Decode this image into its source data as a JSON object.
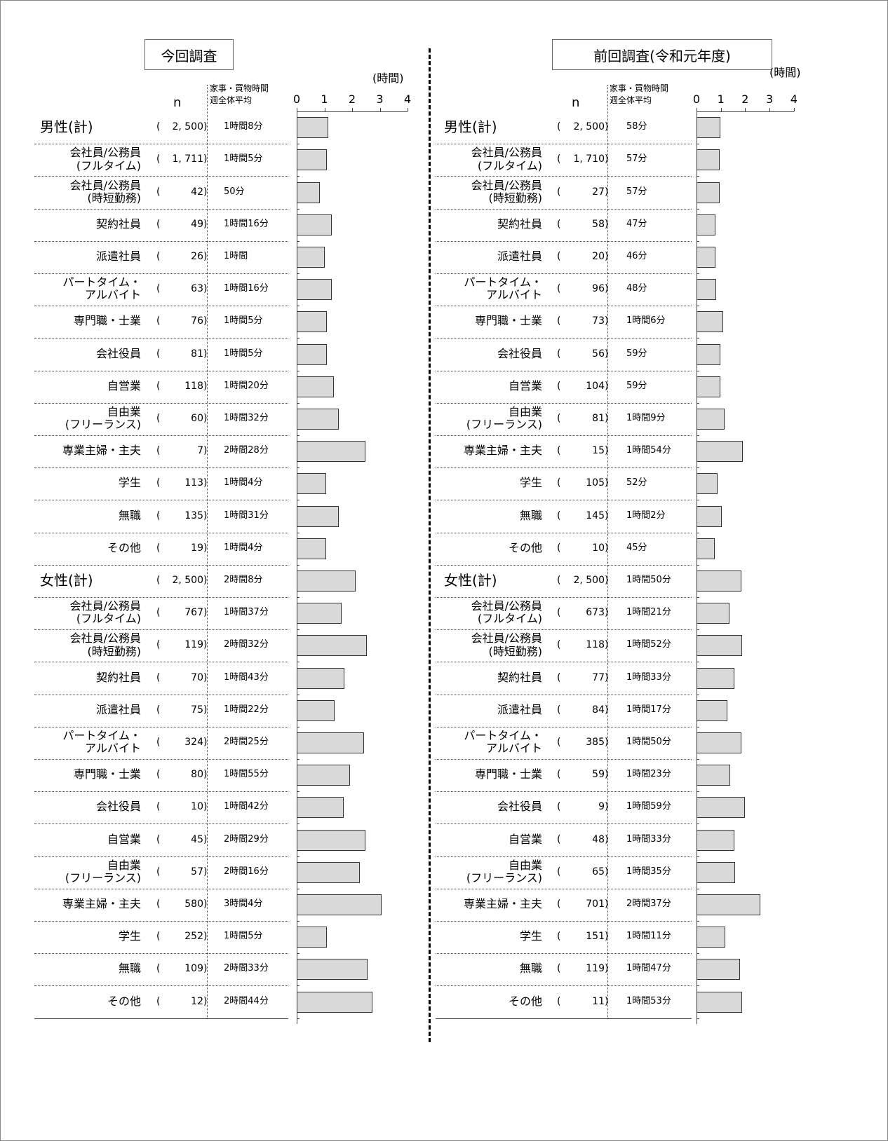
{
  "chart_data": [
    {
      "type": "bar",
      "title": "今回調査",
      "n_header": "n",
      "n_brackets": [
        "(",
        ")"
      ],
      "value_header": [
        "家事・買物時間",
        "週全体平均"
      ],
      "unit": "(時間)",
      "xlim": [
        0,
        4
      ],
      "xticks": [
        0,
        1,
        2,
        3,
        4
      ],
      "color": "#d9d9d9",
      "groups": [
        {
          "label": "男性(計)",
          "n": {
            "value": 2500,
            "label": "2, 500"
          },
          "value": 1.13,
          "value_label": "1時間8分",
          "rows": [
            {
              "label": "会社員/公務員\n(フルタイム)",
              "n": {
                "value": 1711,
                "label": "1, 711"
              },
              "value": 1.08,
              "value_label": "1時間5分"
            },
            {
              "label": "会社員/公務員\n(時短勤務)",
              "n": 42,
              "value": 0.83,
              "value_label": "50分"
            },
            {
              "label": "契約社員",
              "n": 49,
              "value": 1.27,
              "value_label": "1時間16分"
            },
            {
              "label": "派遣社員",
              "n": 26,
              "value": 1.0,
              "value_label": "1時間"
            },
            {
              "label": "パートタイム・\nアルバイト",
              "n": 63,
              "value": 1.27,
              "value_label": "1時間16分"
            },
            {
              "label": "専門職・士業",
              "n": 76,
              "value": 1.08,
              "value_label": "1時間5分"
            },
            {
              "label": "会社役員",
              "n": 81,
              "value": 1.08,
              "value_label": "1時間5分"
            },
            {
              "label": "自営業",
              "n": 118,
              "value": 1.33,
              "value_label": "1時間20分"
            },
            {
              "label": "自由業\n(フリーランス)",
              "n": 60,
              "value": 1.53,
              "value_label": "1時間32分"
            },
            {
              "label": "専業主婦・主夫",
              "n": 7,
              "value": 2.47,
              "value_label": "2時間28分"
            },
            {
              "label": "学生",
              "n": 113,
              "value": 1.07,
              "value_label": "1時間4分"
            },
            {
              "label": "無職",
              "n": 135,
              "value": 1.52,
              "value_label": "1時間31分"
            },
            {
              "label": "その他",
              "n": 19,
              "value": 1.07,
              "value_label": "1時間4分"
            }
          ]
        },
        {
          "label": "女性(計)",
          "n": {
            "value": 2500,
            "label": "2, 500"
          },
          "value": 2.13,
          "value_label": "2時間8分",
          "rows": [
            {
              "label": "会社員/公務員\n(フルタイム)",
              "n": 767,
              "value": 1.62,
              "value_label": "1時間37分"
            },
            {
              "label": "会社員/公務員\n(時短勤務)",
              "n": 119,
              "value": 2.53,
              "value_label": "2時間32分"
            },
            {
              "label": "契約社員",
              "n": 70,
              "value": 1.72,
              "value_label": "1時間43分"
            },
            {
              "label": "派遣社員",
              "n": 75,
              "value": 1.37,
              "value_label": "1時間22分"
            },
            {
              "label": "パートタイム・\nアルバイト",
              "n": 324,
              "value": 2.42,
              "value_label": "2時間25分"
            },
            {
              "label": "専門職・士業",
              "n": 80,
              "value": 1.92,
              "value_label": "1時間55分"
            },
            {
              "label": "会社役員",
              "n": 10,
              "value": 1.7,
              "value_label": "1時間42分"
            },
            {
              "label": "自営業",
              "n": 45,
              "value": 2.48,
              "value_label": "2時間29分"
            },
            {
              "label": "自由業\n(フリーランス)",
              "n": 57,
              "value": 2.27,
              "value_label": "2時間16分"
            },
            {
              "label": "専業主婦・主夫",
              "n": 580,
              "value": 3.07,
              "value_label": "3時間4分"
            },
            {
              "label": "学生",
              "n": 252,
              "value": 1.08,
              "value_label": "1時間5分"
            },
            {
              "label": "無職",
              "n": 109,
              "value": 2.55,
              "value_label": "2時間33分"
            },
            {
              "label": "その他",
              "n": 12,
              "value": 2.73,
              "value_label": "2時間44分"
            }
          ]
        }
      ]
    },
    {
      "type": "bar",
      "title": "前回調査(令和元年度)",
      "n_header": "n",
      "n_brackets": [
        "(",
        ")"
      ],
      "value_header": [
        "家事・買物時間",
        "週全体平均"
      ],
      "unit": "(時間)",
      "xlim": [
        0,
        4
      ],
      "xticks": [
        0,
        1,
        2,
        3,
        4
      ],
      "color": "#d9d9d9",
      "groups": [
        {
          "label": "男性(計)",
          "n": {
            "value": 2500,
            "label": "2, 500"
          },
          "value": 0.97,
          "value_label": "58分",
          "rows": [
            {
              "label": "会社員/公務員\n(フルタイム)",
              "n": {
                "value": 1710,
                "label": "1, 710"
              },
              "value": 0.95,
              "value_label": "57分"
            },
            {
              "label": "会社員/公務員\n(時短勤務)",
              "n": 27,
              "value": 0.95,
              "value_label": "57分"
            },
            {
              "label": "契約社員",
              "n": 58,
              "value": 0.78,
              "value_label": "47分"
            },
            {
              "label": "派遣社員",
              "n": 20,
              "value": 0.77,
              "value_label": "46分"
            },
            {
              "label": "パートタイム・\nアルバイト",
              "n": 96,
              "value": 0.8,
              "value_label": "48分"
            },
            {
              "label": "専門職・士業",
              "n": 73,
              "value": 1.1,
              "value_label": "1時間6分"
            },
            {
              "label": "会社役員",
              "n": 56,
              "value": 0.98,
              "value_label": "59分"
            },
            {
              "label": "自営業",
              "n": 104,
              "value": 0.98,
              "value_label": "59分"
            },
            {
              "label": "自由業\n(フリーランス)",
              "n": 81,
              "value": 1.15,
              "value_label": "1時間9分"
            },
            {
              "label": "専業主婦・主夫",
              "n": 15,
              "value": 1.9,
              "value_label": "1時間54分"
            },
            {
              "label": "学生",
              "n": 105,
              "value": 0.87,
              "value_label": "52分"
            },
            {
              "label": "無職",
              "n": 145,
              "value": 1.03,
              "value_label": "1時間2分"
            },
            {
              "label": "その他",
              "n": 10,
              "value": 0.75,
              "value_label": "45分"
            }
          ]
        },
        {
          "label": "女性(計)",
          "n": {
            "value": 2500,
            "label": "2, 500"
          },
          "value": 1.83,
          "value_label": "1時間50分",
          "rows": [
            {
              "label": "会社員/公務員\n(フルタイム)",
              "n": 673,
              "value": 1.35,
              "value_label": "1時間21分"
            },
            {
              "label": "会社員/公務員\n(時短勤務)",
              "n": 118,
              "value": 1.87,
              "value_label": "1時間52分"
            },
            {
              "label": "契約社員",
              "n": 77,
              "value": 1.55,
              "value_label": "1時間33分"
            },
            {
              "label": "派遣社員",
              "n": 84,
              "value": 1.28,
              "value_label": "1時間17分"
            },
            {
              "label": "パートタイム・\nアルバイト",
              "n": 385,
              "value": 1.83,
              "value_label": "1時間50分"
            },
            {
              "label": "専門職・士業",
              "n": 59,
              "value": 1.38,
              "value_label": "1時間23分"
            },
            {
              "label": "会社役員",
              "n": 9,
              "value": 1.98,
              "value_label": "1時間59分"
            },
            {
              "label": "自営業",
              "n": 48,
              "value": 1.55,
              "value_label": "1時間33分"
            },
            {
              "label": "自由業\n(フリーランス)",
              "n": 65,
              "value": 1.58,
              "value_label": "1時間35分"
            },
            {
              "label": "専業主婦・主夫",
              "n": 701,
              "value": 2.62,
              "value_label": "2時間37分"
            },
            {
              "label": "学生",
              "n": 151,
              "value": 1.18,
              "value_label": "1時間11分"
            },
            {
              "label": "無職",
              "n": 119,
              "value": 1.78,
              "value_label": "1時間47分"
            },
            {
              "label": "その他",
              "n": 11,
              "value": 1.88,
              "value_label": "1時間53分"
            }
          ]
        }
      ]
    }
  ]
}
